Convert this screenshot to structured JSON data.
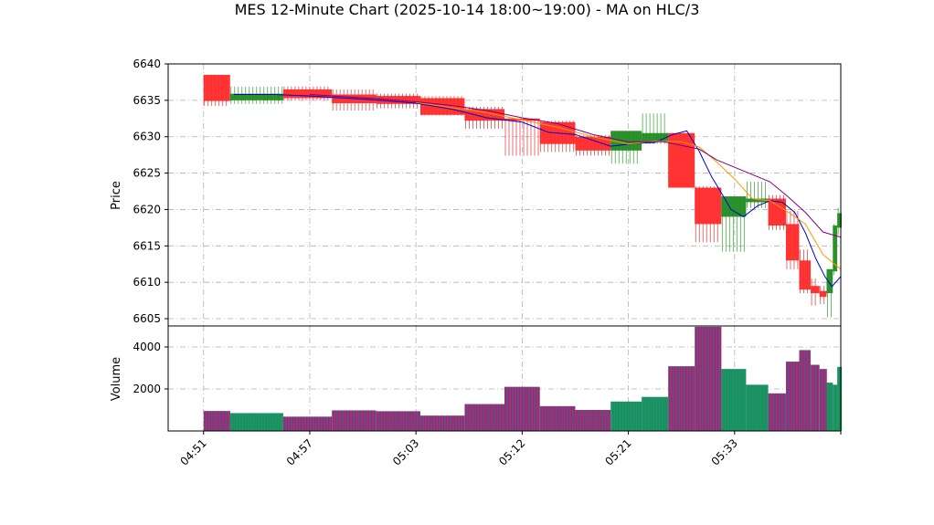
{
  "chart_data": {
    "type": "candlestick",
    "title": "MES 12-Minute Chart (2025-10-14 18:00~19:00) - MA on HLC/3",
    "price_panel": {
      "ylabel": "Price",
      "ylim": [
        6604,
        6640
      ],
      "yticks": [
        6605,
        6610,
        6615,
        6620,
        6625,
        6630,
        6635,
        6640
      ],
      "grid": true
    },
    "volume_panel": {
      "ylabel": "Volume",
      "ylim": [
        0,
        5000
      ],
      "yticks": [
        2000,
        4000
      ],
      "grid": true
    },
    "x_ticks": [
      "04:51",
      "04:57",
      "05:03",
      "05:12",
      "05:21",
      "05:33"
    ],
    "x_tick_positions": [
      0,
      6,
      12,
      18,
      24,
      30
    ],
    "x_range": [
      -2,
      36
    ],
    "bars": [
      {
        "x": 0,
        "open": 6634.9,
        "high": 6638.5,
        "low": 6634.2,
        "close": 6638.5,
        "volume": 950,
        "color": "red"
      },
      {
        "x": 3,
        "open": 6635.0,
        "high": 6636.9,
        "low": 6634.5,
        "close": 6635.9,
        "volume": 850,
        "color": "green"
      },
      {
        "x": 6,
        "open": 6636.5,
        "high": 6636.9,
        "low": 6635.0,
        "close": 6635.3,
        "volume": 680,
        "color": "red"
      },
      {
        "x": 8.5,
        "open": 6635.8,
        "high": 6636.5,
        "low": 6633.6,
        "close": 6634.6,
        "volume": 980,
        "color": "red"
      },
      {
        "x": 11,
        "open": 6635.6,
        "high": 6635.9,
        "low": 6633.9,
        "close": 6634.5,
        "volume": 940,
        "color": "red"
      },
      {
        "x": 13.5,
        "open": 6635.3,
        "high": 6635.6,
        "low": 6632.9,
        "close": 6633.0,
        "volume": 730,
        "color": "red"
      },
      {
        "x": 16,
        "open": 6633.8,
        "high": 6634.1,
        "low": 6631.1,
        "close": 6632.2,
        "volume": 1280,
        "color": "red"
      },
      {
        "x": 18,
        "open": 6632.5,
        "high": 6632.5,
        "low": 6627.4,
        "close": 6632.2,
        "volume": 2100,
        "color": "red"
      },
      {
        "x": 20,
        "open": 6632.0,
        "high": 6632.2,
        "low": 6627.9,
        "close": 6629.0,
        "volume": 1180,
        "color": "red"
      },
      {
        "x": 22,
        "open": 6630.0,
        "high": 6630.2,
        "low": 6627.4,
        "close": 6628.1,
        "volume": 1000,
        "color": "red"
      },
      {
        "x": 24,
        "open": 6628.1,
        "high": 6630.8,
        "low": 6626.3,
        "close": 6630.8,
        "volume": 1400,
        "color": "green"
      },
      {
        "x": 25.5,
        "open": 6629.3,
        "high": 6633.2,
        "low": 6629.0,
        "close": 6630.5,
        "volume": 1620,
        "color": "green"
      },
      {
        "x": 27,
        "open": 6630.5,
        "high": 6630.5,
        "low": 6623.0,
        "close": 6623.0,
        "volume": 3080,
        "color": "red"
      },
      {
        "x": 28.5,
        "open": 6623.0,
        "high": 6623.2,
        "low": 6615.5,
        "close": 6618.0,
        "volume": 4960,
        "color": "red"
      },
      {
        "x": 30,
        "open": 6619.0,
        "high": 6621.8,
        "low": 6614.2,
        "close": 6621.8,
        "volume": 2950,
        "color": "green"
      },
      {
        "x": 31.3,
        "open": 6621.0,
        "high": 6623.8,
        "low": 6620.2,
        "close": 6621.5,
        "volume": 2200,
        "color": "green"
      },
      {
        "x": 32.5,
        "open": 6621.5,
        "high": 6622.0,
        "low": 6617.2,
        "close": 6617.8,
        "volume": 1790,
        "color": "red"
      },
      {
        "x": 33.3,
        "open": 6618.0,
        "high": 6619.8,
        "low": 6611.8,
        "close": 6613.0,
        "volume": 3300,
        "color": "red"
      },
      {
        "x": 34,
        "open": 6613.0,
        "high": 6614.5,
        "low": 6608.5,
        "close": 6609.0,
        "volume": 3850,
        "color": "red"
      },
      {
        "x": 34.6,
        "open": 6609.5,
        "high": 6610.5,
        "low": 6606.8,
        "close": 6608.5,
        "volume": 3150,
        "color": "red"
      },
      {
        "x": 35,
        "open": 6608.8,
        "high": 6609.5,
        "low": 6607.0,
        "close": 6608.0,
        "volume": 2950,
        "color": "red"
      },
      {
        "x": 35.4,
        "open": 6608.5,
        "high": 6611.8,
        "low": 6605.2,
        "close": 6611.8,
        "volume": 2300,
        "color": "green"
      },
      {
        "x": 35.7,
        "open": 6611.5,
        "high": 6618.0,
        "low": 6611.0,
        "close": 6617.8,
        "volume": 2200,
        "color": "green"
      },
      {
        "x": 35.9,
        "open": 6617.5,
        "high": 6620.2,
        "low": 6616.5,
        "close": 6619.5,
        "volume": 3050,
        "color": "green"
      }
    ],
    "ma_lines": [
      {
        "color": "#0000cc",
        "x": [
          1.7,
          4,
          6,
          8,
          10,
          12,
          14,
          16,
          18,
          19.5,
          21,
          23,
          24.5,
          25.5,
          26.5,
          27.3,
          28,
          28.7,
          29.2,
          29.8,
          30.5,
          31.3,
          32,
          32.7,
          33.4,
          34,
          34.6,
          35.1,
          35.5,
          36
        ],
        "y": [
          6635.8,
          6635.8,
          6635.6,
          6635.3,
          6635.0,
          6634.6,
          6633.8,
          6632.6,
          6632.0,
          6630.6,
          6630.3,
          6628.7,
          6629.1,
          6629.2,
          6630.3,
          6630.8,
          6628.0,
          6624.5,
          6622.5,
          6620.0,
          6619.0,
          6620.5,
          6621.2,
          6621.0,
          6619.6,
          6616.8,
          6613.2,
          6610.8,
          6609.4,
          6610.8
        ]
      },
      {
        "color": "#ff9900",
        "x": [
          12,
          14,
          16,
          18,
          20,
          22,
          24,
          25.5,
          27,
          28,
          29,
          30,
          31,
          32,
          33,
          34,
          35,
          36
        ],
        "y": [
          6634.7,
          6634.0,
          6633.3,
          6632.3,
          6631.3,
          6630.0,
          6629.0,
          6629.4,
          6629.3,
          6628.6,
          6626.5,
          6624.2,
          6621.5,
          6621.2,
          6619.7,
          6618.0,
          6613.8,
          6611.8
        ]
      },
      {
        "color": "#800080",
        "x": [
          6,
          8,
          10,
          12,
          14,
          16,
          18,
          20,
          22,
          24,
          26,
          28,
          29,
          30,
          31,
          32,
          33,
          34,
          35,
          36
        ],
        "y": [
          6635.8,
          6635.5,
          6635.2,
          6634.8,
          6634.3,
          6633.6,
          6632.6,
          6631.8,
          6630.3,
          6629.3,
          6629.3,
          6628.3,
          6626.8,
          6625.8,
          6624.8,
          6623.8,
          6621.8,
          6619.6,
          6616.9,
          6616.2
        ]
      }
    ]
  }
}
